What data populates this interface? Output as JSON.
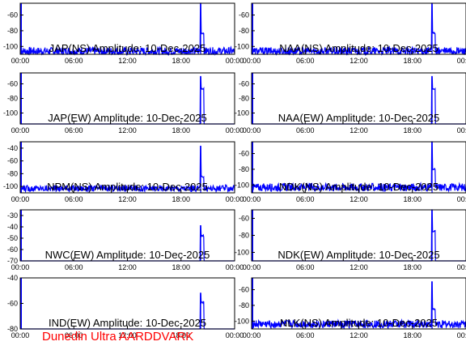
{
  "footer": "Dunedin Ultra AARDDVARK",
  "colors": {
    "trace": "#0000ff",
    "frame": "#000000",
    "title": "#000000",
    "footer": "#ff0000",
    "background": "#ffffff"
  },
  "chart_data": [
    {
      "type": "line",
      "title": "JAP(NS) Amplitude: 10-Dec-2025",
      "x_ticks": [
        "00:00",
        "06:00",
        "12:00",
        "18:00",
        "00:00"
      ],
      "xlim": [
        0,
        24
      ],
      "ylim": [
        -110,
        -45
      ],
      "y_ticks": [
        -100,
        -80,
        -60
      ],
      "noise": {
        "base": -106,
        "amp": 5
      },
      "spike": {
        "x": 20.2,
        "top": -45,
        "plateau": -83
      },
      "grid": false,
      "series": [
        {
          "values": []
        }
      ]
    },
    {
      "type": "line",
      "title": "NAA(NS) Amplitude: 10-Dec-2025",
      "x_ticks": [
        "00:00",
        "06:00",
        "12:00",
        "18:00",
        "00:00"
      ],
      "xlim": [
        0,
        24
      ],
      "ylim": [
        -110,
        -45
      ],
      "y_ticks": [
        -100,
        -80,
        -60
      ],
      "noise": {
        "base": -106,
        "amp": 5
      },
      "spike": {
        "x": 20.2,
        "top": -45,
        "plateau": -83
      },
      "grid": false,
      "series": [
        {
          "values": []
        }
      ]
    },
    {
      "type": "line",
      "title": "JAP(EW) Amplitude: 10-Dec-2025",
      "x_ticks": [
        "00:00",
        "06:00",
        "12:00",
        "18:00",
        "00:00"
      ],
      "xlim": [
        0,
        24
      ],
      "ylim": [
        -115,
        -45
      ],
      "y_ticks": [
        -100,
        -80,
        -60
      ],
      "noise": {
        "base": -116,
        "amp": 0
      },
      "spike": {
        "x": 20.2,
        "top": -50,
        "plateau": -67
      },
      "grid": false,
      "series": [
        {
          "values": []
        }
      ]
    },
    {
      "type": "line",
      "title": "NAA(EW) Amplitude: 10-Dec-2025",
      "x_ticks": [
        "00:00",
        "06:00",
        "12:00",
        "18:00",
        "00:00"
      ],
      "xlim": [
        0,
        24
      ],
      "ylim": [
        -115,
        -45
      ],
      "y_ticks": [
        -100,
        -80,
        -60
      ],
      "noise": {
        "base": -116,
        "amp": 0
      },
      "spike": {
        "x": 20.2,
        "top": -50,
        "plateau": -67
      },
      "grid": false,
      "series": [
        {
          "values": []
        }
      ]
    },
    {
      "type": "line",
      "title": "NPM(NS) Amplitude: 10-Dec-2025",
      "x_ticks": [
        "00:00",
        "06:00",
        "12:00",
        "18:00",
        "00:00"
      ],
      "xlim": [
        0,
        24
      ],
      "ylim": [
        -110,
        -30
      ],
      "y_ticks": [
        -100,
        -80,
        -60,
        -40
      ],
      "noise": {
        "base": -103,
        "amp": 5
      },
      "spike": {
        "x": 20.2,
        "top": -37,
        "plateau": -85
      },
      "grid": false,
      "series": [
        {
          "values": []
        }
      ]
    },
    {
      "type": "line",
      "title": "NDK(NS) Amplitude: 10-Dec-2025",
      "x_ticks": [
        "00:00",
        "06:00",
        "12:00",
        "18:00",
        "00:00"
      ],
      "xlim": [
        0,
        24
      ],
      "ylim": [
        -110,
        -45
      ],
      "y_ticks": [
        -100,
        -80,
        -60
      ],
      "noise": {
        "base": -103,
        "amp": 5
      },
      "spike": {
        "x": 20.2,
        "top": -45,
        "plateau": -80
      },
      "grid": false,
      "series": [
        {
          "values": []
        }
      ]
    },
    {
      "type": "line",
      "title": "NWC(EW) Amplitude: 10-Dec-2025",
      "x_ticks": [
        "00:00",
        "06:00",
        "12:00",
        "18:00",
        "00:00"
      ],
      "xlim": [
        0,
        24
      ],
      "ylim": [
        -70,
        -25
      ],
      "y_ticks": [
        -70,
        -60,
        -50,
        -40,
        -30
      ],
      "noise": {
        "base": -71,
        "amp": 0
      },
      "spike": {
        "x": 20.2,
        "top": -39,
        "plateau": -48
      },
      "grid": false,
      "series": [
        {
          "values": []
        }
      ]
    },
    {
      "type": "line",
      "title": "NDK(EW) Amplitude: 10-Dec-2025",
      "x_ticks": [
        "00:00",
        "06:00",
        "12:00",
        "18:00",
        "00:00"
      ],
      "xlim": [
        0,
        24
      ],
      "ylim": [
        -110,
        -50
      ],
      "y_ticks": [
        -100,
        -80,
        -60
      ],
      "noise": {
        "base": -111,
        "amp": 0
      },
      "spike": {
        "x": 20.2,
        "top": -50,
        "plateau": -75
      },
      "grid": false,
      "series": [
        {
          "values": []
        }
      ]
    },
    {
      "type": "line",
      "title": "IND(EW) Amplitude: 10-Dec-2025",
      "x_ticks": [
        "00:00",
        "06:00",
        "12:00",
        "18:00",
        "00:00"
      ],
      "xlim": [
        0,
        24
      ],
      "ylim": [
        -80,
        -40
      ],
      "y_ticks": [
        -80,
        -60,
        -40
      ],
      "noise": {
        "base": -80,
        "amp": 0
      },
      "spike": {
        "x": 20.2,
        "top": -52,
        "plateau": -59
      },
      "grid": false,
      "series": [
        {
          "values": []
        }
      ]
    },
    {
      "type": "line",
      "title": "NLK(NS) Amplitude: 10-Dec-2025",
      "x_ticks": [
        "00:00",
        "06:00",
        "12:00",
        "18:00",
        "00:00"
      ],
      "xlim": [
        0,
        24
      ],
      "ylim": [
        -110,
        -45
      ],
      "y_ticks": [
        -100,
        -80,
        -60
      ],
      "noise": {
        "base": -104,
        "amp": 5
      },
      "spike": {
        "x": 20.2,
        "top": -50,
        "plateau": -85
      },
      "grid": false,
      "series": [
        {
          "values": []
        }
      ]
    }
  ]
}
